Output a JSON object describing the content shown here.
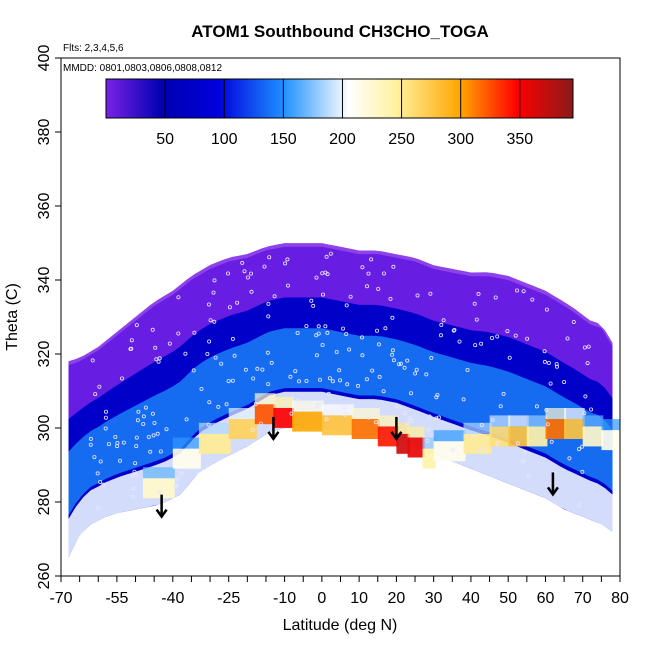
{
  "chart_data": {
    "type": "heatmap",
    "title": "ATOM1 Southbound CH3CHO_TOGA",
    "annotations": [
      "Flts: 2,3,4,5,6",
      "MMDD: 0801,0803,0806,0808,0812"
    ],
    "xlabel": "Latitude (deg N)",
    "ylabel": "Theta (C)",
    "xlim": [
      -70,
      80
    ],
    "ylim": [
      260,
      400
    ],
    "x_ticks_minor": [
      -70,
      -65,
      -60,
      -55,
      -50,
      -45,
      -40,
      -35,
      -30,
      -25,
      -20,
      -15,
      -10,
      -5,
      0,
      5,
      10,
      15,
      20,
      25,
      30,
      35,
      40,
      45,
      50,
      55,
      60,
      65,
      70,
      75,
      80
    ],
    "x_tick_labels": [
      {
        "value": -70,
        "label": "-70"
      },
      {
        "value": -55,
        "label": "-55"
      },
      {
        "value": -40,
        "label": "-40"
      },
      {
        "value": -25,
        "label": "-25"
      },
      {
        "value": -10,
        "label": "-10"
      },
      {
        "value": 0,
        "label": "0"
      },
      {
        "value": 10,
        "label": "10"
      },
      {
        "value": 20,
        "label": "20"
      },
      {
        "value": 30,
        "label": "30"
      },
      {
        "value": 40,
        "label": "40"
      },
      {
        "value": 50,
        "label": "50"
      },
      {
        "value": 60,
        "label": "60"
      },
      {
        "value": 70,
        "label": "70"
      },
      {
        "value": 80,
        "label": "80"
      }
    ],
    "y_ticks": [
      260,
      280,
      300,
      320,
      340,
      360,
      380,
      400
    ],
    "colorbar": {
      "range": [
        0,
        395
      ],
      "ticks": [
        50,
        100,
        150,
        200,
        250,
        300,
        350
      ],
      "colors": [
        "#7a22e6",
        "#0000b0",
        "#1e90ff",
        "#ffffff",
        "#fff2a0",
        "#ffa500",
        "#ff0000",
        "#8b1a1a"
      ]
    },
    "domain_outline": {
      "lat": [
        -68,
        -65,
        -62,
        -58,
        -55,
        -50,
        -45,
        -42,
        -38,
        -33,
        -28,
        -24,
        -20,
        -14,
        -10,
        -5,
        0,
        5,
        10,
        15,
        20,
        25,
        30,
        35,
        40,
        45,
        50,
        55,
        60,
        65,
        70,
        75,
        78,
        78,
        75,
        72,
        68,
        65,
        60,
        55,
        50,
        45,
        40,
        35,
        30,
        25,
        20,
        15,
        10,
        5,
        0,
        -5,
        -10,
        -15,
        -20,
        -25,
        -30,
        -35,
        -40,
        -45,
        -50,
        -55,
        -60,
        -65,
        -68
      ],
      "theta": [
        265,
        271,
        274,
        276,
        277,
        278,
        279,
        280,
        282,
        288,
        291,
        293,
        295,
        299,
        300,
        300,
        300,
        299,
        298,
        298,
        297,
        295,
        293,
        291,
        289,
        287,
        285,
        283,
        281,
        278,
        276,
        274,
        272,
        322,
        327,
        328,
        331,
        333,
        336,
        338,
        340,
        341,
        341,
        342,
        343,
        345,
        346,
        347,
        347,
        348,
        349,
        349,
        349,
        348,
        346,
        345,
        343,
        340,
        336,
        333,
        329,
        325,
        321,
        318,
        317
      ]
    },
    "high_band": {
      "lat": [
        -48,
        -40,
        -33,
        -25,
        -18,
        -13,
        -8,
        0,
        8,
        15,
        20,
        23,
        27,
        30,
        38,
        45,
        50,
        55,
        60,
        65,
        70,
        75
      ],
      "theta": [
        284,
        292,
        296,
        300,
        304,
        303,
        302,
        301,
        300,
        298,
        296,
        295,
        292,
        294,
        296,
        298,
        298,
        298,
        300,
        300,
        298,
        297
      ],
      "value": [
        200,
        180,
        230,
        250,
        310,
        340,
        280,
        260,
        300,
        330,
        360,
        350,
        220,
        180,
        230,
        240,
        260,
        220,
        300,
        260,
        200,
        180
      ]
    },
    "arrows": [
      {
        "lat": -43,
        "theta": 282
      },
      {
        "lat": -13,
        "theta": 303
      },
      {
        "lat": 20,
        "theta": 303
      },
      {
        "lat": 62,
        "theta": 288
      }
    ]
  }
}
